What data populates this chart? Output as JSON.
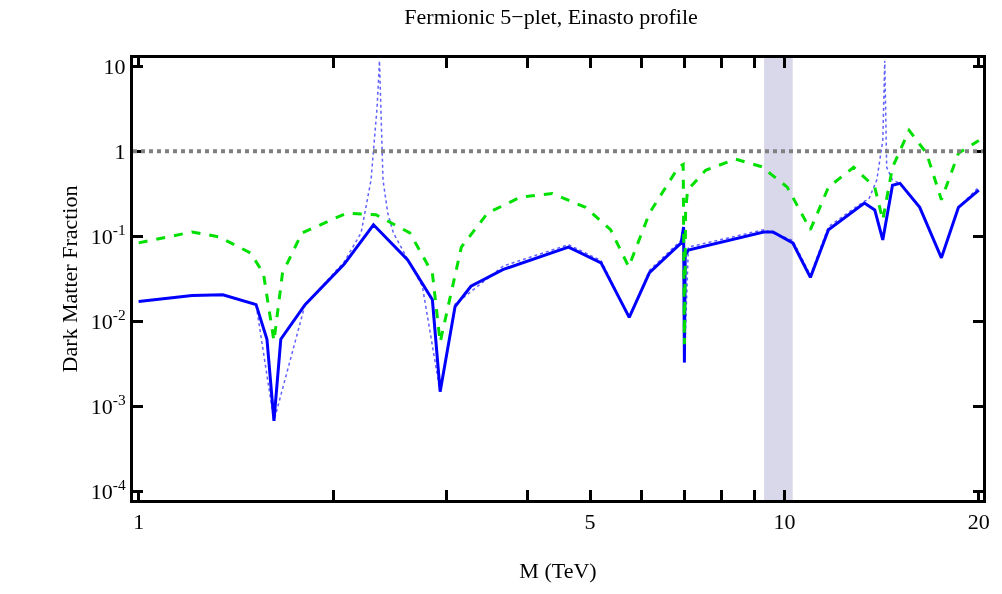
{
  "chart_data": {
    "type": "line",
    "title": "Fermionic 5−plet, Einasto profile",
    "xlabel": "M (TeV)",
    "ylabel": "Dark Matter Fraction",
    "log": "xy",
    "grid": false,
    "xlim": [
      0.98,
      20.3
    ],
    "ylim": [
      8e-05,
      12.5
    ],
    "xticks": [
      1,
      {
        "value": 2,
        "label": null
      },
      {
        "value": 3,
        "label": null
      },
      {
        "value": 4,
        "label": null
      },
      5,
      {
        "value": 6,
        "label": null
      },
      {
        "value": 7,
        "label": null
      },
      {
        "value": 8,
        "label": null
      },
      {
        "value": 9,
        "label": null
      },
      10,
      20
    ],
    "yticks": [
      {
        "value": 0.0001,
        "label": "10$^{-4}$"
      },
      {
        "value": 0.001,
        "label": "10$^{-3}$"
      },
      {
        "value": 0.01,
        "label": "10$^{-2}$"
      },
      {
        "value": 0.1,
        "label": "10$^{-1}$"
      },
      1,
      10
    ],
    "series": [
      {
        "color": "#6060ff",
        "line_style": "dotted",
        "x": [
          1,
          1.21,
          1.35,
          1.52,
          1.62,
          1.81,
          2.08,
          2.21,
          2.29,
          2.34,
          2.36,
          2.39,
          2.43,
          2.48,
          2.75,
          2.93,
          3.09,
          3.67,
          4.63,
          5.2,
          5.75,
          6.18,
          6.92,
          6.98,
          7.0,
          7.1,
          9.29,
          10.3,
          10.97,
          11.7,
          13.3,
          13.5,
          13.9,
          14.2,
          14.3,
          14.4,
          14.7,
          15.1,
          16.2,
          17.5,
          18.6,
          20
        ],
        "values": [
          0.0172,
          0.0202,
          0.0206,
          0.0158,
          0.00068,
          0.0158,
          0.05,
          0.11,
          0.46,
          3.3,
          11.6,
          0.46,
          0.19,
          0.11,
          0.026,
          0.0015,
          0.016,
          0.045,
          0.08,
          0.052,
          0.0112,
          0.04,
          0.09,
          0.13,
          0.0033,
          0.075,
          0.12,
          0.09,
          0.035,
          0.13,
          0.26,
          0.27,
          0.46,
          1.34,
          11.6,
          0.65,
          0.46,
          0.42,
          0.22,
          0.056,
          0.22,
          0.38
        ]
      },
      {
        "color": "#0000ff",
        "line_style": "solid",
        "x": [
          1,
          1.21,
          1.35,
          1.52,
          1.58,
          1.62,
          1.66,
          1.81,
          2.08,
          2.31,
          2.61,
          2.85,
          2.93,
          3.09,
          3.27,
          3.67,
          4.63,
          5.2,
          5.75,
          6.18,
          6.92,
          6.98,
          7.0,
          7.02,
          7.1,
          9.29,
          9.6,
          10.3,
          10.97,
          11.7,
          13.3,
          13.8,
          14.2,
          14.7,
          15.1,
          16.2,
          17.5,
          18.6,
          20
        ],
        "values": [
          0.0172,
          0.0202,
          0.0206,
          0.0158,
          0.0062,
          0.00068,
          0.0062,
          0.0158,
          0.047,
          0.137,
          0.053,
          0.018,
          0.0015,
          0.015,
          0.026,
          0.041,
          0.075,
          0.049,
          0.0112,
          0.0376,
          0.084,
          0.129,
          0.0033,
          0.06,
          0.069,
          0.113,
          0.113,
          0.084,
          0.033,
          0.12,
          0.247,
          0.205,
          0.091,
          0.4,
          0.42,
          0.22,
          0.056,
          0.22,
          0.35
        ]
      },
      {
        "color": "#00e000",
        "line_style": "dashed",
        "x": [
          1,
          1.21,
          1.33,
          1.49,
          1.56,
          1.62,
          1.67,
          1.79,
          2.1,
          2.33,
          2.63,
          2.85,
          2.93,
          3.16,
          3.47,
          3.9,
          4.37,
          4.92,
          5.38,
          5.74,
          6.18,
          6.85,
          6.97,
          7.0,
          7.03,
          7.08,
          7.55,
          8.4,
          9.29,
          9.5,
          10.1,
          10.97,
          11.7,
          12.8,
          13.8,
          14.2,
          14.7,
          15.6,
          16.6,
          17.5,
          18.6,
          20
        ],
        "values": [
          0.084,
          0.113,
          0.099,
          0.064,
          0.037,
          0.0059,
          0.037,
          0.11,
          0.188,
          0.18,
          0.11,
          0.037,
          0.0057,
          0.075,
          0.188,
          0.29,
          0.32,
          0.22,
          0.12,
          0.044,
          0.188,
          0.65,
          0.7,
          0.0054,
          0.2,
          0.35,
          0.6,
          0.81,
          0.65,
          0.55,
          0.38,
          0.12,
          0.38,
          0.65,
          0.38,
          0.156,
          0.65,
          1.76,
          0.95,
          0.27,
          0.95,
          1.34
        ]
      }
    ],
    "ref_lines": [
      {
        "axis": "y",
        "value": 1,
        "color": "#808080",
        "line_style": "dotted"
      }
    ],
    "bands": [
      {
        "axis": "x",
        "from": 9.3,
        "to": 10.3,
        "color": "#d8d8ea"
      }
    ]
  }
}
